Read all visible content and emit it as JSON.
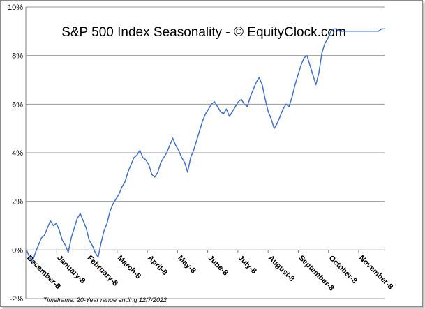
{
  "chart_data": {
    "type": "line",
    "title": "S&P 500 Index Seasonality - © EquityClock.com",
    "footnote": "Timeframe: 20-Year range ending 12/7/2022",
    "ylim": [
      -2,
      10
    ],
    "y_ticks": [
      "-2%",
      "0%",
      "2%",
      "4%",
      "6%",
      "8%",
      "10%"
    ],
    "y_tick_values": [
      -2,
      0,
      2,
      4,
      6,
      8,
      10
    ],
    "grid": true,
    "x_tick_labels": [
      "December-8",
      "January-8",
      "February-8",
      "March-8",
      "April-8",
      "May-8",
      "June-8",
      "July-8",
      "August-8",
      "September-8",
      "October-8",
      "November-8"
    ],
    "series": [
      {
        "name": "S&P 500 Index Seasonality",
        "color": "#4472c4",
        "x": [
          0,
          0.1,
          0.2,
          0.3,
          0.4,
          0.5,
          0.6,
          0.7,
          0.8,
          0.9,
          1,
          1.1,
          1.2,
          1.3,
          1.4,
          1.5,
          1.6,
          1.7,
          1.8,
          1.9,
          2,
          2.1,
          2.2,
          2.3,
          2.4,
          2.5,
          2.6,
          2.7,
          2.8,
          2.9,
          3,
          3.1,
          3.2,
          3.3,
          3.4,
          3.5,
          3.6,
          3.7,
          3.8,
          3.9,
          4,
          4.1,
          4.2,
          4.3,
          4.4,
          4.5,
          4.6,
          4.7,
          4.8,
          4.9,
          5,
          5.1,
          5.2,
          5.3,
          5.4,
          5.5,
          5.6,
          5.7,
          5.8,
          5.9,
          6,
          6.1,
          6.2,
          6.3,
          6.4,
          6.5,
          6.6,
          6.7,
          6.8,
          6.9,
          7,
          7.1,
          7.2,
          7.3,
          7.4,
          7.5,
          7.6,
          7.7,
          7.8,
          7.9,
          8,
          8.1,
          8.2,
          8.3,
          8.4,
          8.5,
          8.6,
          8.7,
          8.8,
          8.9,
          9,
          9.1,
          9.2,
          9.3,
          9.4,
          9.5,
          9.6,
          9.7,
          9.8,
          9.9,
          10,
          10.1,
          10.2,
          10.3,
          10.4,
          10.5,
          10.6,
          10.7,
          10.8,
          10.9,
          11,
          11.1,
          11.2,
          11.3,
          11.4,
          11.5,
          11.6,
          11.7,
          11.8,
          11.9,
          12
        ],
        "values": [
          0,
          -0.3,
          -0.5,
          -0.1,
          0.2,
          0.5,
          0.6,
          0.9,
          1.2,
          1.0,
          1.1,
          0.8,
          0.4,
          0.2,
          -0.1,
          0.5,
          0.9,
          1.3,
          1.5,
          1.2,
          0.9,
          0.4,
          0.2,
          -0.1,
          -0.3,
          0.3,
          0.8,
          1.1,
          1.6,
          1.9,
          2.1,
          2.3,
          2.6,
          2.8,
          3.2,
          3.5,
          3.8,
          3.9,
          4.1,
          3.8,
          3.7,
          3.5,
          3.1,
          3.0,
          3.2,
          3.6,
          3.8,
          4.0,
          4.3,
          4.6,
          4.3,
          4.1,
          3.8,
          3.6,
          3.2,
          3.8,
          4.1,
          4.5,
          4.9,
          5.3,
          5.6,
          5.8,
          6.0,
          6.1,
          5.9,
          5.7,
          5.6,
          5.8,
          5.5,
          5.7,
          5.9,
          6.1,
          6.2,
          6.0,
          5.9,
          6.3,
          6.6,
          6.9,
          7.1,
          6.8,
          6.2,
          5.7,
          5.4,
          5.0,
          5.2,
          5.5,
          5.8,
          6.0,
          5.9,
          6.3,
          6.8,
          7.2,
          7.6,
          7.9,
          8.0,
          7.6,
          7.2,
          6.8,
          7.3,
          8.1,
          8.5,
          8.7,
          9.0,
          9.1,
          9.1,
          9.0,
          9.0,
          9.0,
          9.0,
          9.0,
          9.0,
          9.0,
          9.0,
          9.0,
          9.0,
          9.0,
          9.0,
          9.0,
          9.0,
          9.1,
          9.1
        ]
      }
    ]
  }
}
